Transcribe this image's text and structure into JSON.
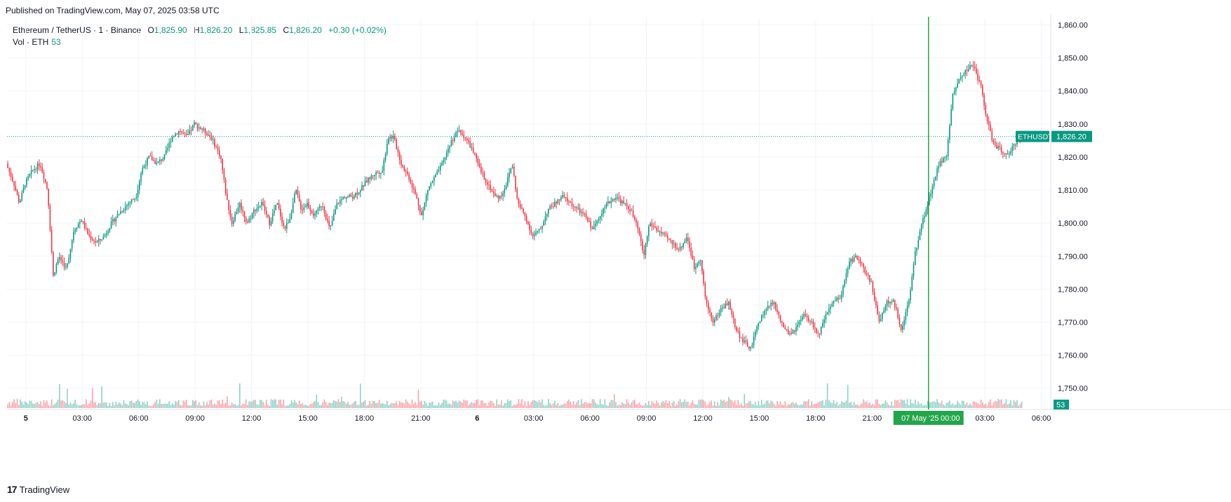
{
  "published": "Published on TradingView.com, May 07, 2025 03:58 UTC",
  "legend": {
    "symbol": "Ethereum / TetherUS · 1 · Binance",
    "o_label": "O",
    "o": "1,825.90",
    "h_label": "H",
    "h": "1,826.20",
    "l_label": "L",
    "l": "1,825.85",
    "c_label": "C",
    "c": "1,826.20",
    "change": "+0.30 (+0.02%)",
    "vol_label": "Vol · ETH",
    "vol_value": "53"
  },
  "footer": {
    "brand": "TradingView",
    "logo_glyph": "17"
  },
  "colors": {
    "up": "#089981",
    "down": "#f23645",
    "crosshair": "#22a64a",
    "badge": "#089981"
  },
  "chart_data": {
    "type": "candlestick",
    "symbol_badge": "ETHUSDT",
    "last_price": 1826.2,
    "last_price_label": "1,826.20",
    "volume_badge": "53",
    "y_range": [
      1744,
      1862
    ],
    "y_ticks": [
      {
        "value": 1860,
        "label": "1,860.00"
      },
      {
        "value": 1850,
        "label": "1,850.00"
      },
      {
        "value": 1840,
        "label": "1,840.00"
      },
      {
        "value": 1830,
        "label": "1,830.00"
      },
      {
        "value": 1820,
        "label": "1,820.00"
      },
      {
        "value": 1810,
        "label": "1,810.00"
      },
      {
        "value": 1800,
        "label": "1,800.00"
      },
      {
        "value": 1790,
        "label": "1,790.00"
      },
      {
        "value": 1780,
        "label": "1,780.00"
      },
      {
        "value": 1770,
        "label": "1,770.00"
      },
      {
        "value": 1760,
        "label": "1,760.00"
      },
      {
        "value": 1750,
        "label": "1,750.00"
      }
    ],
    "x_range_hours": [
      -1.0,
      53.0
    ],
    "x_ticks": [
      {
        "hour": 0,
        "label": "5",
        "bold": true
      },
      {
        "hour": 3,
        "label": "03:00"
      },
      {
        "hour": 6,
        "label": "06:00"
      },
      {
        "hour": 9,
        "label": "09:00"
      },
      {
        "hour": 12,
        "label": "12:00"
      },
      {
        "hour": 15,
        "label": "15:00"
      },
      {
        "hour": 18,
        "label": "18:00"
      },
      {
        "hour": 21,
        "label": "21:00"
      },
      {
        "hour": 24,
        "label": "6",
        "bold": true
      },
      {
        "hour": 27,
        "label": "03:00"
      },
      {
        "hour": 30,
        "label": "06:00"
      },
      {
        "hour": 33,
        "label": "09:00"
      },
      {
        "hour": 36,
        "label": "12:00"
      },
      {
        "hour": 39,
        "label": "15:00"
      },
      {
        "hour": 42,
        "label": "18:00"
      },
      {
        "hour": 45,
        "label": "21:00"
      },
      {
        "hour": 51,
        "label": "03:00"
      },
      {
        "hour": 54,
        "label": "06:00"
      }
    ],
    "crosshair": {
      "hour": 48.0,
      "date_label": "07 May '25",
      "time_label": "00:00"
    },
    "price_path": [
      [
        -1.0,
        1818
      ],
      [
        -0.6,
        1812
      ],
      [
        -0.3,
        1806
      ],
      [
        0.0,
        1812
      ],
      [
        0.4,
        1816
      ],
      [
        0.8,
        1818
      ],
      [
        1.2,
        1810
      ],
      [
        1.5,
        1784
      ],
      [
        1.8,
        1790
      ],
      [
        2.2,
        1786
      ],
      [
        2.6,
        1798
      ],
      [
        3.0,
        1801
      ],
      [
        3.4,
        1796
      ],
      [
        3.8,
        1794
      ],
      [
        4.2,
        1796
      ],
      [
        4.6,
        1800
      ],
      [
        5.0,
        1803
      ],
      [
        5.5,
        1806
      ],
      [
        5.9,
        1808
      ],
      [
        6.2,
        1816
      ],
      [
        6.6,
        1820
      ],
      [
        7.0,
        1818
      ],
      [
        7.4,
        1820
      ],
      [
        7.8,
        1826
      ],
      [
        8.2,
        1828
      ],
      [
        8.6,
        1826
      ],
      [
        9.0,
        1830
      ],
      [
        9.5,
        1828
      ],
      [
        9.9,
        1826
      ],
      [
        10.4,
        1820
      ],
      [
        10.7,
        1808
      ],
      [
        11.0,
        1800
      ],
      [
        11.4,
        1806
      ],
      [
        11.8,
        1800
      ],
      [
        12.2,
        1804
      ],
      [
        12.6,
        1806
      ],
      [
        13.0,
        1800
      ],
      [
        13.4,
        1806
      ],
      [
        13.8,
        1798
      ],
      [
        14.1,
        1802
      ],
      [
        14.4,
        1810
      ],
      [
        14.7,
        1804
      ],
      [
        15.0,
        1806
      ],
      [
        15.4,
        1802
      ],
      [
        15.8,
        1806
      ],
      [
        16.2,
        1798
      ],
      [
        16.6,
        1806
      ],
      [
        17.0,
        1808
      ],
      [
        17.4,
        1808
      ],
      [
        17.8,
        1810
      ],
      [
        18.2,
        1813
      ],
      [
        18.6,
        1815
      ],
      [
        19.0,
        1816
      ],
      [
        19.3,
        1826
      ],
      [
        19.6,
        1826
      ],
      [
        20.0,
        1818
      ],
      [
        20.4,
        1814
      ],
      [
        20.8,
        1808
      ],
      [
        21.1,
        1802
      ],
      [
        21.4,
        1810
      ],
      [
        21.8,
        1814
      ],
      [
        22.2,
        1818
      ],
      [
        22.6,
        1824
      ],
      [
        23.0,
        1828
      ],
      [
        23.4,
        1826
      ],
      [
        23.8,
        1822
      ],
      [
        24.2,
        1816
      ],
      [
        24.6,
        1812
      ],
      [
        25.0,
        1808
      ],
      [
        25.3,
        1808
      ],
      [
        25.6,
        1812
      ],
      [
        25.9,
        1818
      ],
      [
        26.2,
        1806
      ],
      [
        26.6,
        1802
      ],
      [
        27.0,
        1796
      ],
      [
        27.4,
        1798
      ],
      [
        27.8,
        1804
      ],
      [
        28.2,
        1806
      ],
      [
        28.6,
        1808
      ],
      [
        29.0,
        1806
      ],
      [
        29.4,
        1804
      ],
      [
        29.8,
        1802
      ],
      [
        30.2,
        1798
      ],
      [
        30.6,
        1803
      ],
      [
        31.0,
        1806
      ],
      [
        31.4,
        1808
      ],
      [
        31.8,
        1806
      ],
      [
        32.2,
        1804
      ],
      [
        32.6,
        1798
      ],
      [
        32.9,
        1790
      ],
      [
        33.2,
        1800
      ],
      [
        33.6,
        1798
      ],
      [
        34.0,
        1796
      ],
      [
        34.4,
        1794
      ],
      [
        34.8,
        1792
      ],
      [
        35.2,
        1796
      ],
      [
        35.6,
        1786
      ],
      [
        35.9,
        1790
      ],
      [
        36.2,
        1776
      ],
      [
        36.6,
        1770
      ],
      [
        37.0,
        1774
      ],
      [
        37.4,
        1776
      ],
      [
        37.8,
        1768
      ],
      [
        38.2,
        1764
      ],
      [
        38.6,
        1762
      ],
      [
        39.0,
        1770
      ],
      [
        39.4,
        1774
      ],
      [
        39.8,
        1776
      ],
      [
        40.2,
        1770
      ],
      [
        40.6,
        1766
      ],
      [
        41.0,
        1768
      ],
      [
        41.4,
        1772
      ],
      [
        41.8,
        1770
      ],
      [
        42.2,
        1766
      ],
      [
        42.6,
        1772
      ],
      [
        43.0,
        1776
      ],
      [
        43.4,
        1778
      ],
      [
        43.8,
        1788
      ],
      [
        44.2,
        1790
      ],
      [
        44.6,
        1786
      ],
      [
        45.0,
        1782
      ],
      [
        45.4,
        1770
      ],
      [
        45.8,
        1776
      ],
      [
        46.2,
        1776
      ],
      [
        46.6,
        1768
      ],
      [
        47.0,
        1776
      ],
      [
        47.3,
        1790
      ],
      [
        47.6,
        1798
      ],
      [
        48.0,
        1806
      ],
      [
        48.3,
        1812
      ],
      [
        48.6,
        1818
      ],
      [
        49.0,
        1820
      ],
      [
        49.3,
        1838
      ],
      [
        49.7,
        1844
      ],
      [
        50.0,
        1846
      ],
      [
        50.4,
        1848
      ],
      [
        50.8,
        1842
      ],
      [
        51.2,
        1830
      ],
      [
        51.5,
        1824
      ],
      [
        51.9,
        1822
      ],
      [
        52.3,
        1820
      ],
      [
        52.6,
        1824
      ],
      [
        52.9,
        1826
      ],
      [
        53.0,
        1826.2
      ]
    ]
  }
}
